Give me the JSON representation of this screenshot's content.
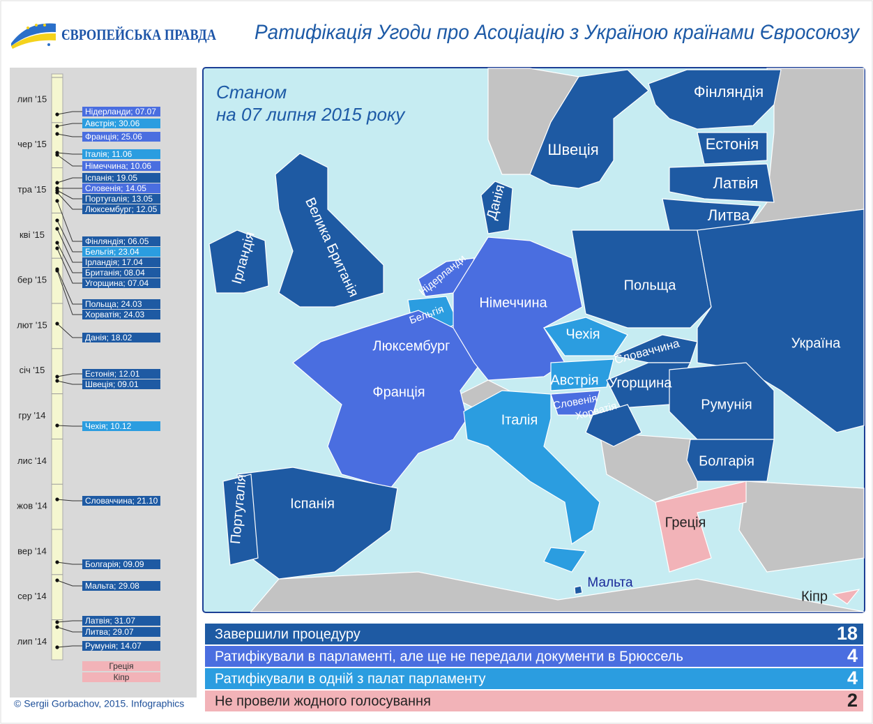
{
  "header": {
    "logo": "ЄВРОПЕЙСЬКА ПРАВДА",
    "title": "Ратифікація Угоди про Асоціацію з Україною країнами Євросоюзу"
  },
  "timeline": {
    "months": [
      "лип '15",
      "чер '15",
      "тра '15",
      "кві '15",
      "бер '15",
      "лют '15",
      "січ '15",
      "гру '14",
      "лис '14",
      "жов '14",
      "вер '14",
      "сер '14",
      "лип '14"
    ],
    "events": [
      {
        "label": "Нідерланди; 07.07",
        "color": "#4a6ee0"
      },
      {
        "label": "Австрія;        30.06",
        "color": "#2b9de0"
      },
      {
        "label": "Франція;      25.06",
        "color": "#4a6ee0"
      },
      {
        "label": "Італія; 11.06",
        "color": "#2b9de0"
      },
      {
        "label": "Німеччина; 10.06",
        "color": "#4a6ee0"
      },
      {
        "label": "Іспанія; 19.05",
        "color": "#1e5aa3"
      },
      {
        "label": "Словенія; 14.05",
        "color": "#4a6ee0"
      },
      {
        "label": "Португалія; 13.05",
        "color": "#1e5aa3"
      },
      {
        "label": "Люксембург; 12.05",
        "color": "#1e5aa3"
      },
      {
        "label": "Фінляндія; 06.05",
        "color": "#1e5aa3"
      },
      {
        "label": "Бельгія; 23.04",
        "color": "#2b9de0"
      },
      {
        "label": "Ірландія; 17.04",
        "color": "#1e5aa3"
      },
      {
        "label": "Британія; 08.04",
        "color": "#1e5aa3"
      },
      {
        "label": "Угорщина; 07.04",
        "color": "#1e5aa3"
      },
      {
        "label": "Польща; 24.03",
        "color": "#1e5aa3"
      },
      {
        "label": "Хорватія; 24.03",
        "color": "#1e5aa3"
      },
      {
        "label": "Данія; 18.02",
        "color": "#1e5aa3"
      },
      {
        "label": "Естонія; 12.01",
        "color": "#1e5aa3"
      },
      {
        "label": "Швеція; 09.01",
        "color": "#1e5aa3"
      },
      {
        "label": "Чехія; 10.12",
        "color": "#2b9de0"
      },
      {
        "label": "Словаччина; 21.10",
        "color": "#1e5aa3"
      },
      {
        "label": "Болгарія; 09.09",
        "color": "#1e5aa3"
      },
      {
        "label": "Мальта; 29.08",
        "color": "#1e5aa3"
      },
      {
        "label": "Латвія; 31.07",
        "color": "#1e5aa3"
      },
      {
        "label": "Литва; 29.07",
        "color": "#1e5aa3"
      },
      {
        "label": "Румунія; 14.07",
        "color": "#1e5aa3"
      }
    ],
    "pending": [
      {
        "label": "Греція",
        "color": "#f2b3b8"
      },
      {
        "label": "Кіпр",
        "color": "#f2b3b8"
      }
    ]
  },
  "map": {
    "date_lines": [
      "Станом",
      "на 07 липня 2015 року"
    ],
    "countries": [
      {
        "name": "Фінляндія",
        "color": "#1e5aa3"
      },
      {
        "name": "Швеція",
        "color": "#1e5aa3"
      },
      {
        "name": "Естонія",
        "color": "#1e5aa3"
      },
      {
        "name": "Латвія",
        "color": "#1e5aa3"
      },
      {
        "name": "Литва",
        "color": "#1e5aa3"
      },
      {
        "name": "Данія",
        "color": "#1e5aa3"
      },
      {
        "name": "Ірландія",
        "color": "#1e5aa3"
      },
      {
        "name": "Велика Британія",
        "color": "#1e5aa3"
      },
      {
        "name": "Нідерланди",
        "color": "#4a6ee0"
      },
      {
        "name": "Бельгія",
        "color": "#2b9de0"
      },
      {
        "name": "Люксембург",
        "color": "#1e5aa3"
      },
      {
        "name": "Франція",
        "color": "#4a6ee0"
      },
      {
        "name": "Німеччина",
        "color": "#4a6ee0"
      },
      {
        "name": "Польща",
        "color": "#1e5aa3"
      },
      {
        "name": "Україна",
        "color": "#1e5aa3"
      },
      {
        "name": "Чехія",
        "color": "#2b9de0"
      },
      {
        "name": "Словаччина",
        "color": "#1e5aa3"
      },
      {
        "name": "Австрія",
        "color": "#2b9de0"
      },
      {
        "name": "Угорщина",
        "color": "#1e5aa3"
      },
      {
        "name": "Словенія",
        "color": "#4a6ee0"
      },
      {
        "name": "Хорватія",
        "color": "#1e5aa3"
      },
      {
        "name": "Румунія",
        "color": "#1e5aa3"
      },
      {
        "name": "Болгарія",
        "color": "#1e5aa3"
      },
      {
        "name": "Італія",
        "color": "#2b9de0"
      },
      {
        "name": "Іспанія",
        "color": "#1e5aa3"
      },
      {
        "name": "Португалія",
        "color": "#1e5aa3"
      },
      {
        "name": "Греція",
        "color": "#f2b3b8"
      },
      {
        "name": "Мальта",
        "color": "#1e5aa3"
      },
      {
        "name": "Кіпр",
        "color": "#f2b3b8"
      }
    ]
  },
  "legend": [
    {
      "label": "Завершили процедуру",
      "count": 18,
      "color": "#1e5aa3"
    },
    {
      "label": "Ратифікували в парламенті, але ще не передали документи  в Брюссель",
      "count": 4,
      "color": "#4a6ee0"
    },
    {
      "label": "Ратифікували в одній з палат парламенту",
      "count": 4,
      "color": "#2b9de0"
    },
    {
      "label": "Не провели жодного голосування",
      "count": 2,
      "color": "#f2b3b8"
    }
  ],
  "footer": "© Sergii Gorbachov, 2015. Infographics"
}
